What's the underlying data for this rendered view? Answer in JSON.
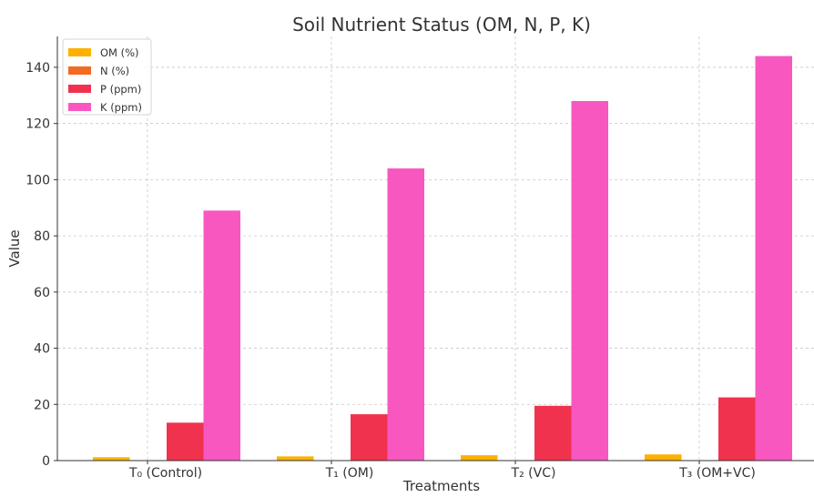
{
  "chart_data": {
    "type": "bar",
    "title": "Soil Nutrient Status (OM, N, P, K)",
    "xlabel": "Treatments",
    "ylabel": "Value",
    "categories": [
      "T₀ (Control)",
      "T₁ (OM)",
      "T₂ (VC)",
      "T₃ (OM+VC)"
    ],
    "series": [
      {
        "name": "OM (%)",
        "color": "#FFB000",
        "values": [
          1.2,
          1.5,
          1.9,
          2.2
        ]
      },
      {
        "name": "N (%)",
        "color": "#F26B21",
        "values": [
          0.08,
          0.1,
          0.12,
          0.14
        ]
      },
      {
        "name": "P (ppm)",
        "color": "#F0324F",
        "values": [
          13.5,
          16.5,
          19.5,
          22.5
        ]
      },
      {
        "name": "K (ppm)",
        "color": "#F857C0",
        "values": [
          89,
          104,
          128,
          144
        ]
      }
    ],
    "ylim": [
      0,
      151
    ],
    "yticks": [
      0,
      20,
      40,
      60,
      80,
      100,
      120,
      140
    ],
    "grid": true,
    "legend_position": "top-left"
  }
}
